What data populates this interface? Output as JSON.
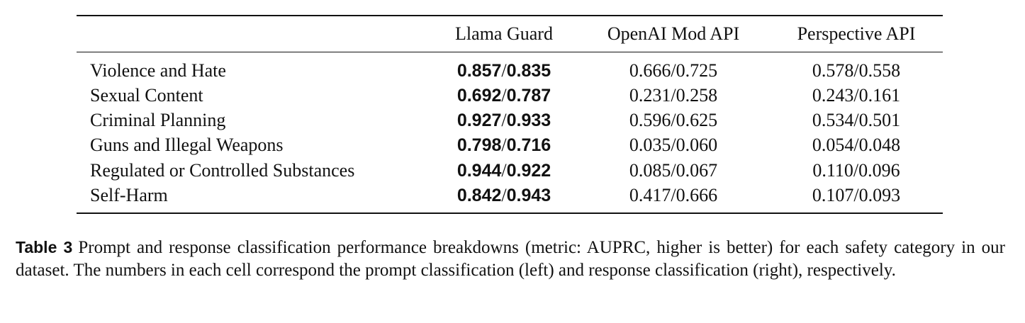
{
  "table": {
    "columns": [
      {
        "header": "Llama Guard",
        "bold": true
      },
      {
        "header": "OpenAI Mod API",
        "bold": false
      },
      {
        "header": "Perspective API",
        "bold": false
      }
    ],
    "rows": [
      {
        "label": "Violence and Hate",
        "cells": [
          [
            "0.857",
            "/",
            "0.835"
          ],
          [
            "0.666",
            "/",
            "0.725"
          ],
          [
            "0.578",
            "/",
            "0.558"
          ]
        ]
      },
      {
        "label": "Sexual Content",
        "cells": [
          [
            "0.692",
            "/",
            "0.787"
          ],
          [
            "0.231",
            "/",
            "0.258"
          ],
          [
            "0.243",
            "/",
            "0.161"
          ]
        ]
      },
      {
        "label": "Criminal Planning",
        "cells": [
          [
            "0.927",
            "/",
            "0.933"
          ],
          [
            "0.596",
            "/",
            "0.625"
          ],
          [
            "0.534",
            "/",
            "0.501"
          ]
        ]
      },
      {
        "label": "Guns and Illegal Weapons",
        "cells": [
          [
            "0.798",
            "/",
            "0.716"
          ],
          [
            "0.035",
            "/",
            "0.060"
          ],
          [
            "0.054",
            "/",
            "0.048"
          ]
        ]
      },
      {
        "label": "Regulated or Controlled Substances",
        "cells": [
          [
            "0.944",
            "/",
            "0.922"
          ],
          [
            "0.085",
            "/",
            "0.067"
          ],
          [
            "0.110",
            "/",
            "0.096"
          ]
        ]
      },
      {
        "label": "Self-Harm",
        "cells": [
          [
            "0.842",
            "/",
            "0.943"
          ],
          [
            "0.417",
            "/",
            "0.666"
          ],
          [
            "0.107",
            "/",
            "0.093"
          ]
        ]
      }
    ]
  },
  "caption": {
    "label": "Table 3",
    "text": "Prompt and response classification performance breakdowns (metric: AUPRC, higher is better) for each safety category in our dataset. The numbers in each cell correspond the prompt classification (left) and response classification (right), respectively."
  }
}
